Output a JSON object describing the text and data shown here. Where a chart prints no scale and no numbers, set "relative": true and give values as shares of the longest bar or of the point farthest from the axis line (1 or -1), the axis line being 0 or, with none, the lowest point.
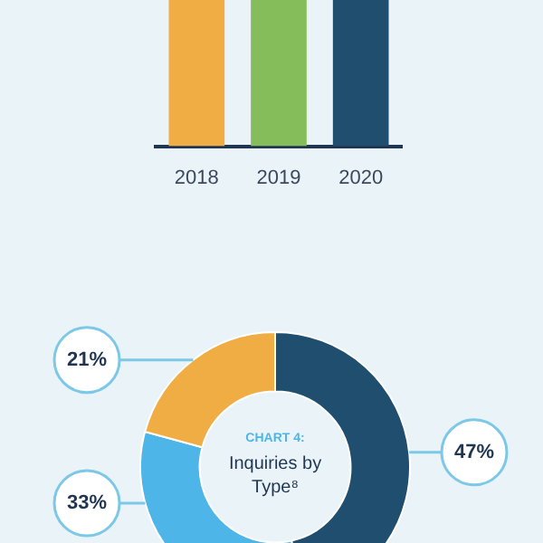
{
  "chart_data": [
    {
      "type": "bar",
      "categories": [
        "2018",
        "2019",
        "2020"
      ],
      "values": [
        1,
        1,
        1
      ],
      "colors": [
        "#f0ad44",
        "#84bd5a",
        "#1f4e6e"
      ],
      "relative": true
    },
    {
      "type": "donut",
      "title": "CHART 4:",
      "subtitle": "Inquiries by Type⁸",
      "categories": [
        null,
        null,
        null
      ],
      "values": [
        47,
        33,
        21
      ],
      "colors": [
        "#1f4e6e",
        "#4db5e8",
        "#f0ad44"
      ],
      "value_labels": [
        "47%",
        "33%",
        "21%"
      ]
    }
  ]
}
